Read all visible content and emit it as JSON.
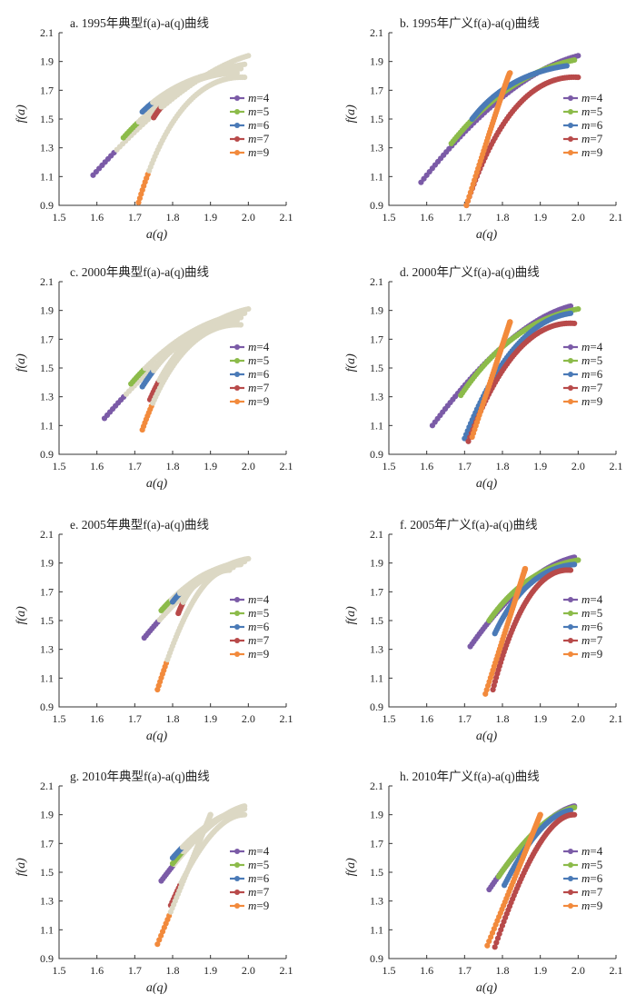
{
  "legend_prefix": "m",
  "legend_colors": {
    "4": "#7b5ba7",
    "5": "#8cbb4a",
    "6": "#4a7ab7",
    "7": "#b84a4a",
    "9": "#f28a3c"
  },
  "typical_color": "#dcd8c4",
  "chart_data": [
    {
      "type": "scatter",
      "title": "a. 1995年典型f(a)-a(q)曲线",
      "kind": "typical",
      "xlabel": "a(q)",
      "ylabel": "f(a)",
      "xlim": [
        1.5,
        2.1
      ],
      "ylim": [
        0.9,
        2.1
      ],
      "xticks": [
        "1.5",
        "1.6",
        "1.7",
        "1.8",
        "1.9",
        "2.0",
        "2.1"
      ],
      "yticks": [
        "0.9",
        "1.1",
        "1.3",
        "1.5",
        "1.7",
        "1.9",
        "2.1"
      ],
      "legend": [
        "m=4",
        "m=5",
        "m=6",
        "m=7",
        "m=9"
      ],
      "series": [
        {
          "name": "m=4",
          "left": [
            1.59,
            1.11
          ],
          "right": [
            2.0,
            1.94
          ],
          "peak": [
            1.83,
            1.81
          ]
        },
        {
          "name": "m=5",
          "left": [
            1.67,
            1.37
          ],
          "right": [
            1.99,
            1.88
          ],
          "peak": [
            1.82,
            1.81
          ]
        },
        {
          "name": "m=6",
          "left": [
            1.72,
            1.55
          ],
          "right": [
            1.98,
            1.85
          ],
          "peak": [
            1.82,
            1.81
          ]
        },
        {
          "name": "m=7",
          "left": [
            1.75,
            1.51
          ],
          "right": [
            1.97,
            1.82
          ],
          "peak": [
            1.82,
            1.81
          ]
        },
        {
          "name": "m=9",
          "left": [
            1.71,
            0.92
          ],
          "right": [
            1.99,
            1.79
          ],
          "peak": [
            1.81,
            1.81
          ]
        }
      ]
    },
    {
      "type": "scatter",
      "title": "b. 1995年广义f(a)-a(q)曲线",
      "kind": "general",
      "xlabel": "a(q)",
      "ylabel": "f(a)",
      "xlim": [
        1.5,
        2.1
      ],
      "ylim": [
        0.9,
        2.1
      ],
      "xticks": [
        "1.5",
        "1.6",
        "1.7",
        "1.8",
        "1.9",
        "2.0",
        "2.1"
      ],
      "yticks": [
        "0.9",
        "1.1",
        "1.3",
        "1.5",
        "1.7",
        "1.9",
        "2.1"
      ],
      "legend": [
        "m=4",
        "m=5",
        "m=6",
        "m=7",
        "m=9"
      ],
      "series": [
        {
          "name": "m=4",
          "left": [
            1.585,
            1.06
          ],
          "right": [
            2.0,
            1.94
          ],
          "peak": [
            1.81,
            1.81
          ]
        },
        {
          "name": "m=5",
          "left": [
            1.665,
            1.33
          ],
          "right": [
            1.99,
            1.91
          ],
          "peak": [
            1.81,
            1.81
          ]
        },
        {
          "name": "m=6",
          "left": [
            1.72,
            1.5
          ],
          "right": [
            1.97,
            1.87
          ],
          "peak": [
            1.81,
            1.81
          ]
        },
        {
          "name": "m=7",
          "left": [
            1.705,
            0.9
          ],
          "right": [
            2.0,
            1.79
          ],
          "peak": [
            1.82,
            1.82
          ]
        },
        {
          "name": "m=9",
          "left": [
            1.705,
            0.9
          ],
          "right": [
            1.82,
            1.82
          ],
          "peak": [
            1.815,
            1.82
          ]
        }
      ]
    },
    {
      "type": "scatter",
      "title": "c. 2000年典型f(a)-a(q)曲线",
      "kind": "typical",
      "xlabel": "a(q)",
      "ylabel": "f(a)",
      "xlim": [
        1.5,
        2.1
      ],
      "ylim": [
        0.9,
        2.1
      ],
      "xticks": [
        "1.5",
        "1.6",
        "1.7",
        "1.8",
        "1.9",
        "2.0",
        "2.1"
      ],
      "yticks": [
        "0.9",
        "1.1",
        "1.3",
        "1.5",
        "1.7",
        "1.9",
        "2.1"
      ],
      "legend": [
        "m=4",
        "m=5",
        "m=6",
        "m=7",
        "m=9"
      ],
      "series": [
        {
          "name": "m=4",
          "left": [
            1.62,
            1.15
          ],
          "right": [
            2.0,
            1.91
          ],
          "peak": [
            1.84,
            1.82
          ]
        },
        {
          "name": "m=5",
          "left": [
            1.69,
            1.39
          ],
          "right": [
            1.99,
            1.88
          ],
          "peak": [
            1.83,
            1.82
          ]
        },
        {
          "name": "m=6",
          "left": [
            1.72,
            1.37
          ],
          "right": [
            1.98,
            1.85
          ],
          "peak": [
            1.83,
            1.82
          ]
        },
        {
          "name": "m=7",
          "left": [
            1.74,
            1.28
          ],
          "right": [
            1.97,
            1.83
          ],
          "peak": [
            1.83,
            1.82
          ]
        },
        {
          "name": "m=9",
          "left": [
            1.72,
            1.07
          ],
          "right": [
            1.98,
            1.8
          ],
          "peak": [
            1.82,
            1.82
          ]
        }
      ]
    },
    {
      "type": "scatter",
      "title": "d. 2000年广义f(a)-a(q)曲线",
      "kind": "general",
      "xlabel": "a(q)",
      "ylabel": "f(a)",
      "xlim": [
        1.5,
        2.1
      ],
      "ylim": [
        0.9,
        2.1
      ],
      "xticks": [
        "1.5",
        "1.6",
        "1.7",
        "1.8",
        "1.9",
        "2.0",
        "2.1"
      ],
      "yticks": [
        "0.9",
        "1.1",
        "1.3",
        "1.5",
        "1.7",
        "1.9",
        "2.1"
      ],
      "legend": [
        "m=4",
        "m=5",
        "m=6",
        "m=7",
        "m=9"
      ],
      "series": [
        {
          "name": "m=4",
          "left": [
            1.615,
            1.1
          ],
          "right": [
            1.98,
            1.93
          ],
          "peak": [
            1.82,
            1.82
          ]
        },
        {
          "name": "m=5",
          "left": [
            1.69,
            1.31
          ],
          "right": [
            2.0,
            1.91
          ],
          "peak": [
            1.82,
            1.82
          ]
        },
        {
          "name": "m=6",
          "left": [
            1.7,
            1.01
          ],
          "right": [
            1.98,
            1.88
          ],
          "peak": [
            1.82,
            1.82
          ]
        },
        {
          "name": "m=7",
          "left": [
            1.71,
            0.99
          ],
          "right": [
            1.99,
            1.81
          ],
          "peak": [
            1.83,
            1.84
          ]
        },
        {
          "name": "m=9",
          "left": [
            1.72,
            1.02
          ],
          "right": [
            1.82,
            1.82
          ],
          "peak": [
            1.82,
            1.82
          ]
        }
      ]
    },
    {
      "type": "scatter",
      "title": "e. 2005年典型f(a)-a(q)曲线",
      "kind": "typical",
      "xlabel": "a(q)",
      "ylabel": "f(a)",
      "xlim": [
        1.5,
        2.1
      ],
      "ylim": [
        0.9,
        2.1
      ],
      "xticks": [
        "1.5",
        "1.6",
        "1.7",
        "1.8",
        "1.9",
        "2.0",
        "2.1"
      ],
      "yticks": [
        "0.9",
        "1.1",
        "1.3",
        "1.5",
        "1.7",
        "1.9",
        "2.1"
      ],
      "legend": [
        "m=4",
        "m=5",
        "m=6",
        "m=7",
        "m=9"
      ],
      "series": [
        {
          "name": "m=4",
          "left": [
            1.725,
            1.38
          ],
          "right": [
            2.0,
            1.93
          ],
          "peak": [
            1.88,
            1.88
          ]
        },
        {
          "name": "m=5",
          "left": [
            1.77,
            1.57
          ],
          "right": [
            1.99,
            1.91
          ],
          "peak": [
            1.87,
            1.87
          ]
        },
        {
          "name": "m=6",
          "left": [
            1.8,
            1.63
          ],
          "right": [
            1.98,
            1.89
          ],
          "peak": [
            1.87,
            1.87
          ]
        },
        {
          "name": "m=7",
          "left": [
            1.815,
            1.55
          ],
          "right": [
            1.96,
            1.87
          ],
          "peak": [
            1.86,
            1.86
          ]
        },
        {
          "name": "m=9",
          "left": [
            1.76,
            1.02
          ],
          "right": [
            1.95,
            1.85
          ],
          "peak": [
            1.86,
            1.86
          ]
        }
      ]
    },
    {
      "type": "scatter",
      "title": "f. 2005年广义f(a)-a(q)曲线",
      "kind": "general",
      "xlabel": "a(q)",
      "ylabel": "f(a)",
      "xlim": [
        1.5,
        2.1
      ],
      "ylim": [
        0.9,
        2.1
      ],
      "xticks": [
        "1.5",
        "1.6",
        "1.7",
        "1.8",
        "1.9",
        "2.0",
        "2.1"
      ],
      "yticks": [
        "0.9",
        "1.1",
        "1.3",
        "1.5",
        "1.7",
        "1.9",
        "2.1"
      ],
      "legend": [
        "m=4",
        "m=5",
        "m=6",
        "m=7",
        "m=9"
      ],
      "series": [
        {
          "name": "m=4",
          "left": [
            1.715,
            1.32
          ],
          "right": [
            1.99,
            1.94
          ],
          "peak": [
            1.86,
            1.86
          ]
        },
        {
          "name": "m=5",
          "left": [
            1.765,
            1.5
          ],
          "right": [
            2.0,
            1.92
          ],
          "peak": [
            1.86,
            1.86
          ]
        },
        {
          "name": "m=6",
          "left": [
            1.78,
            1.41
          ],
          "right": [
            1.99,
            1.89
          ],
          "peak": [
            1.86,
            1.86
          ]
        },
        {
          "name": "m=7",
          "left": [
            1.775,
            1.02
          ],
          "right": [
            1.98,
            1.85
          ],
          "peak": [
            1.86,
            1.88
          ]
        },
        {
          "name": "m=9",
          "left": [
            1.755,
            0.99
          ],
          "right": [
            1.86,
            1.86
          ],
          "peak": [
            1.86,
            1.86
          ]
        }
      ]
    },
    {
      "type": "scatter",
      "title": "g. 2010年典型f(a)-a(q)曲线",
      "kind": "typical",
      "xlabel": "a(q)",
      "ylabel": "f(a)",
      "xlim": [
        1.5,
        2.1
      ],
      "ylim": [
        0.9,
        2.1
      ],
      "xticks": [
        "1.5",
        "1.6",
        "1.7",
        "1.8",
        "1.9",
        "2.0",
        "2.1"
      ],
      "yticks": [
        "0.9",
        "1.1",
        "1.3",
        "1.5",
        "1.7",
        "1.9",
        "2.1"
      ],
      "legend": [
        "m=4",
        "m=5",
        "m=6",
        "m=7",
        "m=9"
      ],
      "series": [
        {
          "name": "m=4",
          "left": [
            1.77,
            1.44
          ],
          "right": [
            1.99,
            1.96
          ],
          "peak": [
            1.9,
            1.9
          ]
        },
        {
          "name": "m=5",
          "left": [
            1.8,
            1.56
          ],
          "right": [
            1.99,
            1.94
          ],
          "peak": [
            1.9,
            1.9
          ]
        },
        {
          "name": "m=6",
          "left": [
            1.8,
            1.6
          ],
          "right": [
            1.98,
            1.93
          ],
          "peak": [
            1.9,
            1.9
          ]
        },
        {
          "name": "m=7",
          "left": [
            1.795,
            1.27
          ],
          "right": [
            1.99,
            1.9
          ],
          "peak": [
            1.9,
            1.9
          ]
        },
        {
          "name": "m=9",
          "left": [
            1.76,
            1.0
          ],
          "right": [
            1.9,
            1.9
          ],
          "peak": [
            1.9,
            1.9
          ]
        }
      ]
    },
    {
      "type": "scatter",
      "title": "h. 2010年广义f(a)-a(q)曲线",
      "kind": "general",
      "xlabel": "a(q)",
      "ylabel": "f(a)",
      "xlim": [
        1.5,
        2.1
      ],
      "ylim": [
        0.9,
        2.1
      ],
      "xticks": [
        "1.5",
        "1.6",
        "1.7",
        "1.8",
        "1.9",
        "2.0",
        "2.1"
      ],
      "yticks": [
        "0.9",
        "1.1",
        "1.3",
        "1.5",
        "1.7",
        "1.9",
        "2.1"
      ],
      "legend": [
        "m=4",
        "m=5",
        "m=6",
        "m=7",
        "m=9"
      ],
      "series": [
        {
          "name": "m=4",
          "left": [
            1.765,
            1.38
          ],
          "right": [
            1.99,
            1.96
          ],
          "peak": [
            1.9,
            1.9
          ]
        },
        {
          "name": "m=5",
          "left": [
            1.79,
            1.47
          ],
          "right": [
            1.99,
            1.95
          ],
          "peak": [
            1.9,
            1.9
          ]
        },
        {
          "name": "m=6",
          "left": [
            1.805,
            1.41
          ],
          "right": [
            1.98,
            1.93
          ],
          "peak": [
            1.9,
            1.9
          ]
        },
        {
          "name": "m=7",
          "left": [
            1.78,
            0.98
          ],
          "right": [
            1.99,
            1.9
          ],
          "peak": [
            1.9,
            1.91
          ]
        },
        {
          "name": "m=9",
          "left": [
            1.76,
            0.99
          ],
          "right": [
            1.9,
            1.9
          ],
          "peak": [
            1.9,
            1.9
          ]
        }
      ]
    }
  ]
}
